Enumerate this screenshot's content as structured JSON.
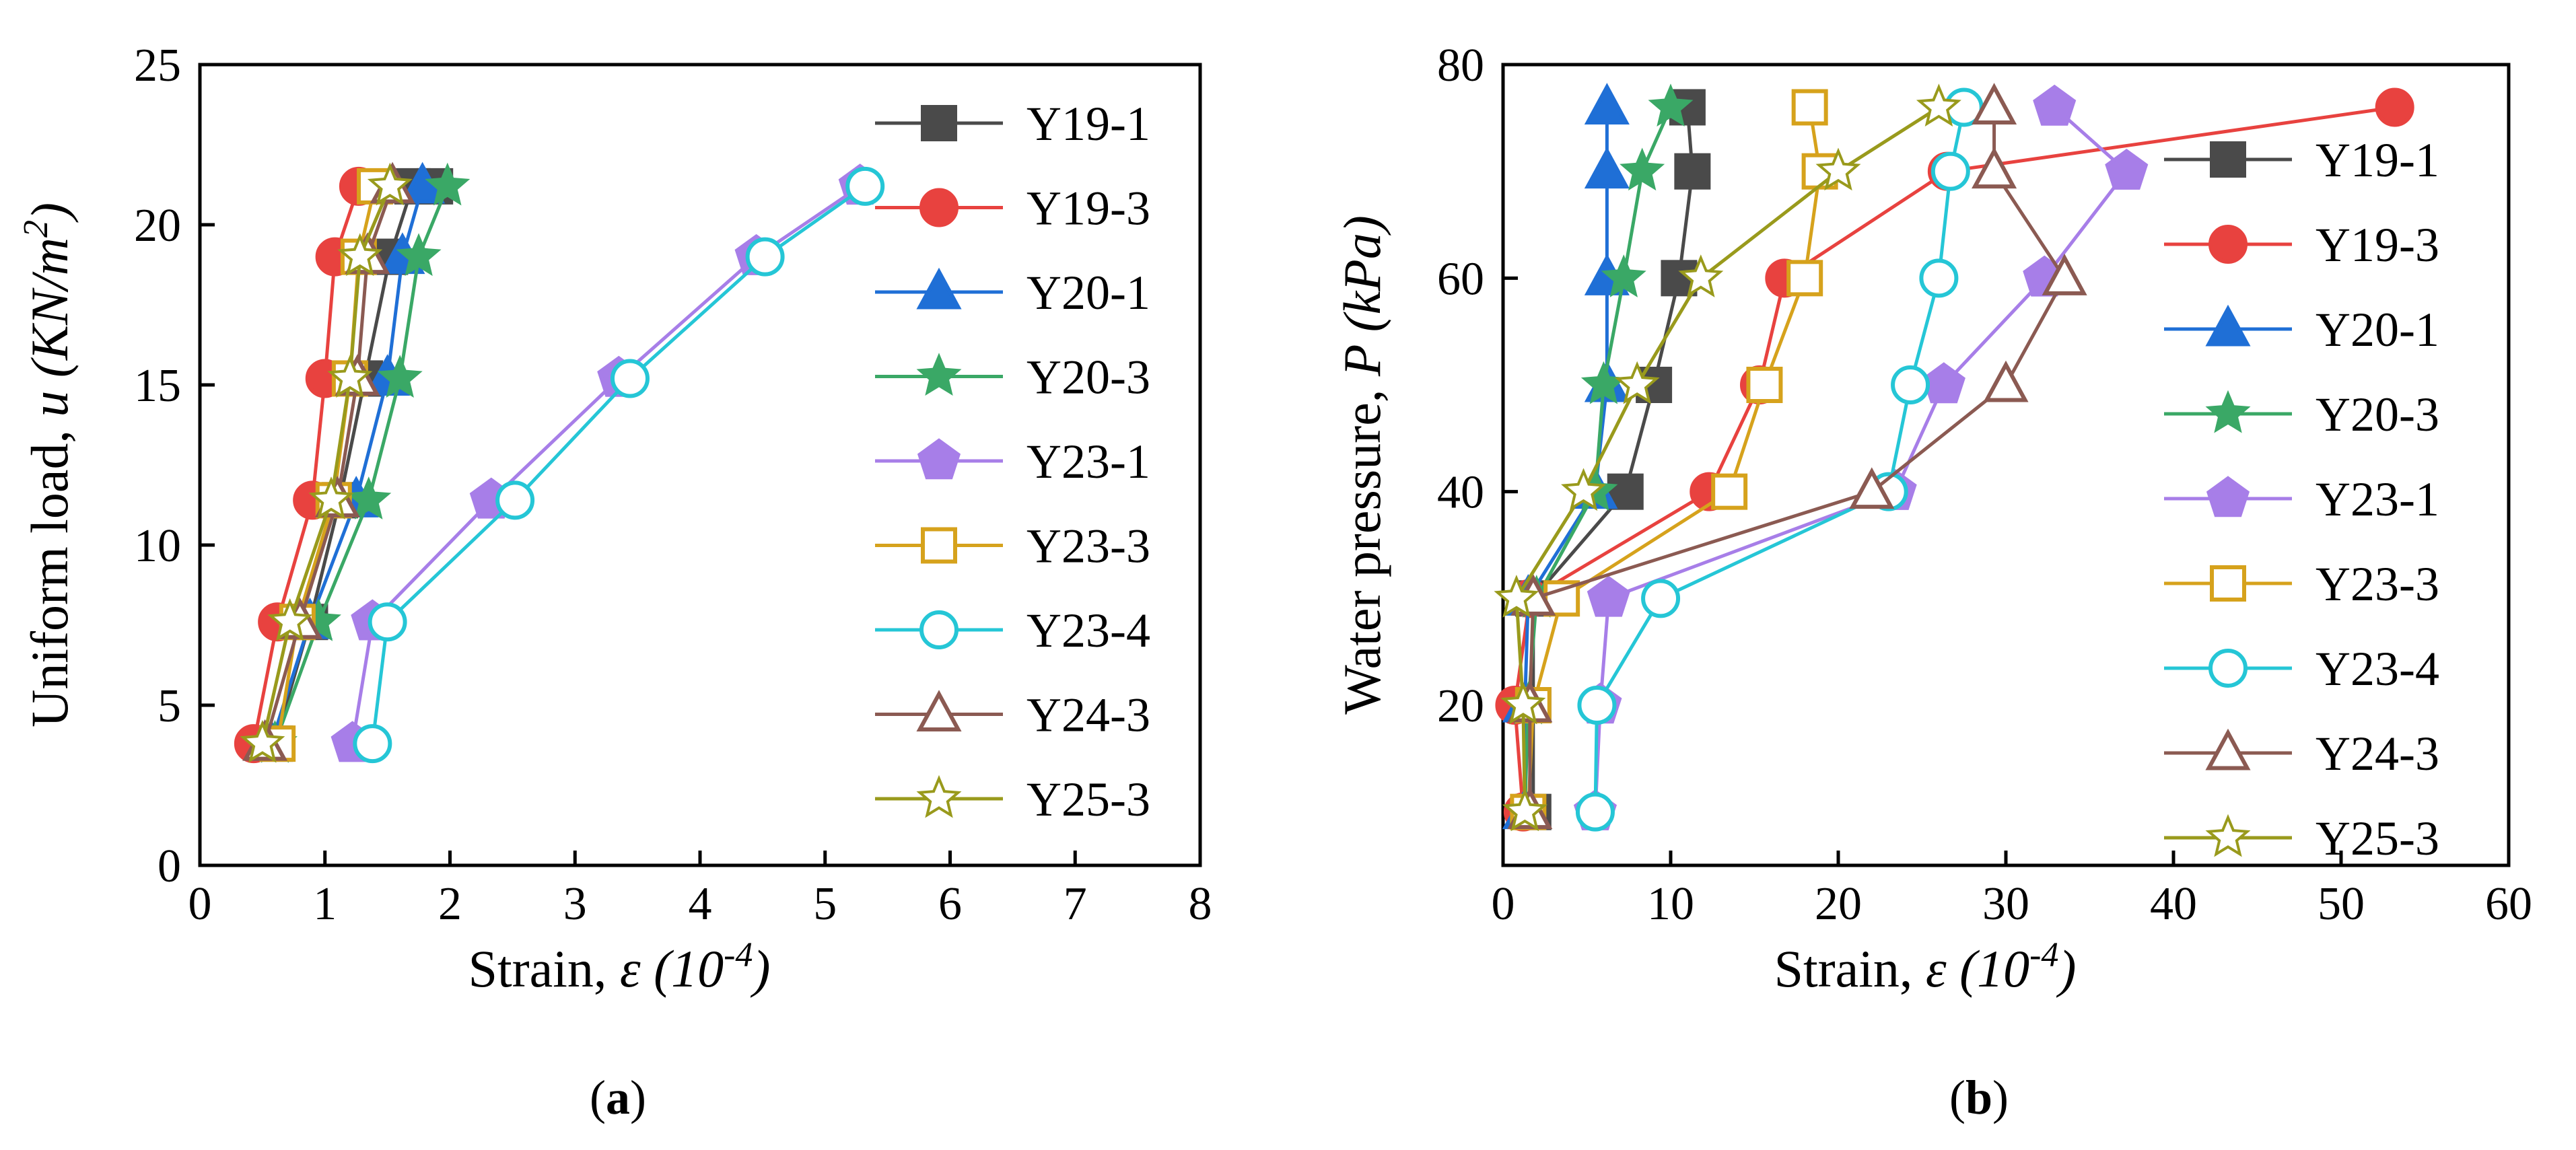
{
  "chart_data": [
    {
      "type": "line",
      "panel": "(a)",
      "xlabel": "Strain, ε (10-4)",
      "ylabel": "Uniform load, u (KN/m2)",
      "xlim": [
        0,
        8
      ],
      "ylim": [
        0,
        25
      ],
      "xticks": [
        0,
        1,
        2,
        3,
        4,
        5,
        6,
        7,
        8
      ],
      "yticks": [
        0,
        5,
        10,
        15,
        20,
        25
      ],
      "legend_position": "right",
      "series": [
        {
          "name": "Y19-1",
          "color": "#4a4a4a",
          "marker": "square",
          "filled": true,
          "x": [
            0.6,
            0.88,
            1.12,
            1.32,
            1.52,
            1.7,
            1.88
          ],
          "y": [
            3.8,
            7.6,
            11.4,
            15.2,
            19.0,
            21.2,
            21.2
          ]
        },
        {
          "name": "Y19-3",
          "color": "#e8423f",
          "marker": "circle",
          "filled": true,
          "x": [
            0.43,
            0.62,
            0.9,
            1.0,
            1.08,
            1.27
          ],
          "y": [
            3.8,
            7.6,
            11.4,
            15.2,
            19.0,
            21.2
          ]
        },
        {
          "name": "Y20-1",
          "color": "#1f6fd6",
          "marker": "triangle",
          "filled": true,
          "x": [
            0.57,
            0.88,
            1.25,
            1.5,
            1.62,
            1.78
          ],
          "y": [
            3.8,
            7.6,
            11.4,
            15.2,
            19.0,
            21.2
          ]
        },
        {
          "name": "Y20-3",
          "color": "#3aa866",
          "marker": "star",
          "filled": true,
          "x": [
            0.6,
            0.95,
            1.35,
            1.6,
            1.75,
            1.98
          ],
          "y": [
            3.8,
            7.6,
            11.4,
            15.2,
            19.0,
            21.2
          ]
        },
        {
          "name": "Y23-1",
          "color": "#a77ee8",
          "marker": "pentagon",
          "filled": true,
          "x": [
            1.22,
            1.38,
            2.33,
            3.35,
            4.45,
            5.28
          ],
          "y": [
            3.8,
            7.6,
            11.4,
            15.2,
            19.0,
            21.2
          ]
        },
        {
          "name": "Y23-3",
          "color": "#d6a21c",
          "marker": "square",
          "filled": false,
          "x": [
            0.62,
            0.78,
            1.07,
            1.2,
            1.27,
            1.4
          ],
          "y": [
            3.8,
            7.6,
            11.4,
            15.2,
            19.0,
            21.2
          ]
        },
        {
          "name": "Y23-4",
          "color": "#25c6d6",
          "marker": "circle",
          "filled": false,
          "x": [
            1.38,
            1.5,
            2.52,
            3.44,
            4.52,
            5.32
          ],
          "y": [
            3.8,
            7.6,
            11.4,
            15.2,
            19.0,
            21.2
          ]
        },
        {
          "name": "Y24-3",
          "color": "#8b5a52",
          "marker": "triangle",
          "filled": false,
          "x": [
            0.52,
            0.8,
            1.1,
            1.26,
            1.34,
            1.54
          ],
          "y": [
            3.8,
            7.6,
            11.4,
            15.2,
            19.0,
            21.2
          ]
        },
        {
          "name": "Y25-3",
          "color": "#999a1c",
          "marker": "star",
          "filled": false,
          "x": [
            0.5,
            0.72,
            1.05,
            1.2,
            1.28,
            1.52
          ],
          "y": [
            3.8,
            7.6,
            11.4,
            15.2,
            19.0,
            21.2
          ]
        }
      ]
    },
    {
      "type": "line",
      "panel": "(b)",
      "xlabel": "Strain, ε (10-4)",
      "ylabel": "Water pressure, P (kPa)",
      "xlim": [
        0,
        60
      ],
      "ylim": [
        5,
        80
      ],
      "xticks": [
        0,
        10,
        20,
        30,
        40,
        50,
        60
      ],
      "yticks": [
        20,
        40,
        60,
        80
      ],
      "legend_position": "right",
      "series": [
        {
          "name": "Y19-1",
          "color": "#4a4a4a",
          "marker": "square",
          "filled": true,
          "x": [
            1.8,
            1.8,
            1.8,
            7.3,
            9.0,
            10.5,
            11.3,
            11.0
          ],
          "y": [
            10,
            20,
            30,
            40,
            50,
            60,
            70,
            76
          ]
        },
        {
          "name": "Y19-3",
          "color": "#e8423f",
          "marker": "circle",
          "filled": true,
          "x": [
            1.2,
            0.7,
            1.6,
            12.3,
            15.3,
            16.8,
            26.5,
            53.2
          ],
          "y": [
            10,
            20,
            30,
            40,
            50,
            60,
            70,
            76
          ]
        },
        {
          "name": "Y20-1",
          "color": "#1f6fd6",
          "marker": "triangle",
          "filled": true,
          "x": [
            1.3,
            1.3,
            1.5,
            5.5,
            6.2,
            6.2,
            6.2,
            6.2
          ],
          "y": [
            10,
            20,
            30,
            40,
            50,
            60,
            70,
            76
          ]
        },
        {
          "name": "Y20-3",
          "color": "#3aa866",
          "marker": "star",
          "filled": true,
          "x": [
            1.3,
            1.5,
            2.0,
            5.5,
            6.0,
            7.2,
            8.3,
            10.0
          ],
          "y": [
            10,
            20,
            30,
            40,
            50,
            60,
            70,
            76
          ]
        },
        {
          "name": "Y23-1",
          "color": "#a77ee8",
          "marker": "pentagon",
          "filled": true,
          "x": [
            5.5,
            5.8,
            6.3,
            23.4,
            26.3,
            32.3,
            37.2,
            32.9
          ],
          "y": [
            10,
            20,
            30,
            40,
            50,
            60,
            70,
            76
          ]
        },
        {
          "name": "Y23-3",
          "color": "#d6a21c",
          "marker": "square",
          "filled": false,
          "x": [
            1.5,
            1.8,
            3.5,
            13.5,
            15.6,
            18.0,
            18.9,
            18.3
          ],
          "y": [
            10,
            20,
            30,
            40,
            50,
            60,
            70,
            76
          ]
        },
        {
          "name": "Y23-4",
          "color": "#25c6d6",
          "marker": "circle",
          "filled": false,
          "x": [
            5.5,
            5.6,
            9.4,
            23.0,
            24.3,
            26.0,
            26.7,
            27.5
          ],
          "y": [
            10,
            20,
            30,
            40,
            50,
            60,
            70,
            76
          ]
        },
        {
          "name": "Y24-3",
          "color": "#8b5a52",
          "marker": "triangle",
          "filled": false,
          "x": [
            1.6,
            1.6,
            1.8,
            22.0,
            30.0,
            33.5,
            29.3,
            29.3
          ],
          "y": [
            10,
            20,
            30,
            40,
            50,
            60,
            70,
            76
          ]
        },
        {
          "name": "Y25-3",
          "color": "#999a1c",
          "marker": "star",
          "filled": false,
          "x": [
            1.3,
            1.2,
            0.8,
            4.8,
            8.0,
            11.8,
            20.0,
            26.0
          ],
          "y": [
            10,
            20,
            30,
            40,
            50,
            60,
            70,
            76
          ]
        }
      ]
    }
  ]
}
